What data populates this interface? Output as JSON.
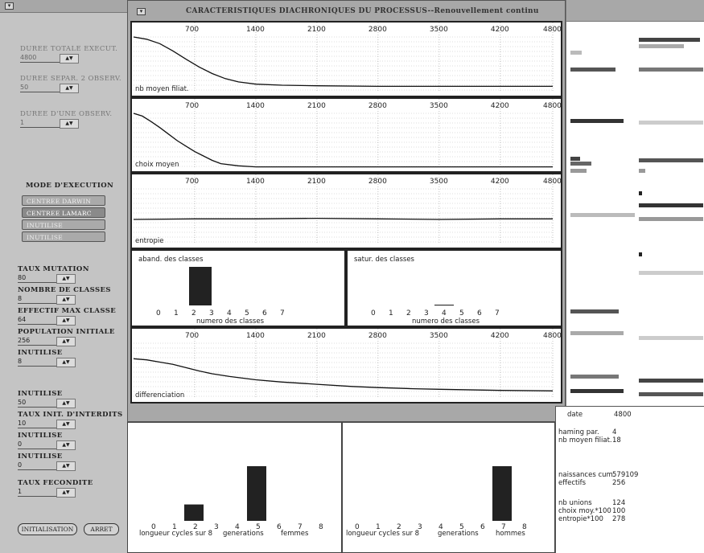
{
  "left_panel": {
    "params": [
      {
        "label": "DUREE TOTALE EXECUT.",
        "value": "4800",
        "dark": false
      },
      {
        "label": "DUREE SEPAR. 2 OBSERV.",
        "value": "50",
        "dark": false
      },
      {
        "label": "DUREE D'UNE OBSERV.",
        "value": "1",
        "dark": false
      }
    ],
    "mode_title": "MODE D'EXECUTION",
    "mode_buttons": [
      "CENTREE DARWIN",
      "CENTREE LAMARC",
      "INUTILISE",
      "INUTILISE"
    ],
    "params2": [
      {
        "label": "TAUX MUTATION",
        "value": "80",
        "dark": true
      },
      {
        "label": "NOMBRE DE CLASSES",
        "value": "8",
        "dark": true
      },
      {
        "label": "EFFECTIF MAX CLASSE",
        "value": "64",
        "dark": true
      },
      {
        "label": "POPULATION INITIALE",
        "value": "256",
        "dark": true
      },
      {
        "label": "INUTILISE",
        "value": "8",
        "dark": true
      },
      {
        "label": "INUTILISE",
        "value": "50",
        "dark": true
      },
      {
        "label": "TAUX INIT. D'INTERDITS",
        "value": "10",
        "dark": true
      },
      {
        "label": "INUTILISE",
        "value": "0",
        "dark": true
      },
      {
        "label": "INUTILISE",
        "value": "0",
        "dark": true
      },
      {
        "label": "TAUX FECONDITE",
        "value": "1",
        "dark": true
      }
    ],
    "stepper_glyph": "▲▼",
    "init_button": "INITIALISATION",
    "stop_button": "ARRET"
  },
  "main_window": {
    "title": "CARACTERISTIQUES DIACHRONIQUES DU PROCESSUS--Renouvellement continu",
    "x_ticks": [
      "700",
      "1400",
      "2100",
      "2800",
      "3500",
      "4200",
      "4800"
    ]
  },
  "chart_data": [
    {
      "type": "line",
      "label": "nb moyen filiat.",
      "x_range": [
        0,
        4800
      ],
      "x": [
        0,
        150,
        300,
        450,
        600,
        750,
        900,
        1050,
        1200,
        1400,
        1700,
        2100,
        2800,
        3500,
        4200,
        4800
      ],
      "y": [
        100,
        96,
        88,
        75,
        60,
        46,
        34,
        25,
        19,
        15,
        13,
        12,
        11,
        11,
        11,
        11
      ]
    },
    {
      "type": "line",
      "label": "choix moyen",
      "x_range": [
        0,
        4800
      ],
      "x": [
        0,
        100,
        200,
        300,
        400,
        500,
        600,
        700,
        800,
        900,
        1000,
        1200,
        1400,
        2100,
        2800,
        3500,
        4200,
        4800
      ],
      "y": [
        100,
        95,
        85,
        74,
        62,
        50,
        40,
        30,
        22,
        14,
        8,
        4,
        2,
        2,
        2,
        2,
        2,
        2
      ]
    },
    {
      "type": "line",
      "label": "entropie",
      "x_range": [
        0,
        4800
      ],
      "x": [
        0,
        700,
        1400,
        2100,
        2800,
        3500,
        4200,
        4800
      ],
      "y": [
        45,
        46,
        46,
        47,
        46,
        45,
        46,
        46
      ]
    },
    {
      "type": "bar",
      "title": "aband. des classes",
      "xlabel": "numero des classes",
      "categories": [
        "0",
        "1",
        "2",
        "3",
        "4",
        "5",
        "6",
        "7"
      ],
      "values": [
        0,
        0,
        1,
        0,
        0,
        0,
        0,
        0
      ]
    },
    {
      "type": "bar",
      "title": "satur. des classes",
      "xlabel": "numero des classes",
      "categories": [
        "0",
        "1",
        "2",
        "3",
        "4",
        "5",
        "6",
        "7"
      ],
      "values": [
        0,
        0,
        0,
        0,
        0.05,
        0,
        0,
        0
      ]
    },
    {
      "type": "line",
      "label": "differenciation",
      "x_range": [
        0,
        4800
      ],
      "x": [
        0,
        150,
        300,
        450,
        600,
        750,
        900,
        1100,
        1400,
        1700,
        2100,
        2500,
        2800,
        3200,
        3500,
        4200,
        4800
      ],
      "y": [
        72,
        70,
        66,
        62,
        56,
        50,
        45,
        40,
        34,
        30,
        26,
        22,
        20,
        18,
        17,
        15,
        14
      ]
    },
    {
      "type": "bar",
      "xlabel": "longueur cycles sur 8",
      "group_label": "femmes",
      "center_label": "generations",
      "categories": [
        "0",
        "1",
        "2",
        "3",
        "4",
        "5",
        "6",
        "7",
        "8"
      ],
      "values": [
        0,
        0,
        0.3,
        0,
        0,
        1,
        0,
        0,
        0
      ]
    },
    {
      "type": "bar",
      "xlabel": "longueur cycles sur 8",
      "group_label": "hommes",
      "center_label": "generations",
      "categories": [
        "0",
        "1",
        "2",
        "3",
        "4",
        "5",
        "6",
        "7",
        "8"
      ],
      "values": [
        0,
        0,
        0,
        0,
        0,
        0,
        0,
        1,
        0
      ]
    }
  ],
  "stats": {
    "date_label": "date",
    "date_value": "4800",
    "haming_label": "haming par.",
    "haming_value": "4",
    "filiat_label": "nb moyen filiat.",
    "filiat_value": "18",
    "naiss_label": "naissances cum.",
    "naiss_value": "579109",
    "effectifs_label": "effectifs",
    "effectifs_value": "256",
    "unions_label": "nb unions",
    "unions_value": "124",
    "choix_label": "choix moy.*100",
    "choix_value": "100",
    "entropie_label": "entropie*100",
    "entropie_value": "278"
  }
}
